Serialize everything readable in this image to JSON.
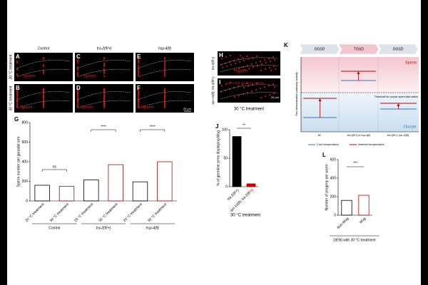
{
  "panels": {
    "microscopy": {
      "columns": [
        "Control",
        "tra-2(lf/+)",
        "hsp-4(lf)"
      ],
      "rows": [
        "20 °C treatment",
        "30 °C treatment"
      ],
      "letters": [
        "A",
        "B",
        "C",
        "D",
        "E",
        "F"
      ],
      "sperm": "Sperm",
      "scale_bar": "20 µm"
    },
    "rescue": {
      "letters": [
        "H",
        "I"
      ],
      "rows": [
        "tra-2(lf/+)",
        "rpn-10(lf); tra-2(lf/+)"
      ],
      "reporter": "rpn-10(lf);mCherry-histone",
      "condition": "30 °C treatment",
      "sperm": "Sperm",
      "scale_bar": "20 µm"
    },
    "G": {
      "letter": "G",
      "ylabel": "Sperm number per gonadal arm",
      "categories": [
        "20 °C treatment",
        "30 °C treatment",
        "20 °C treatment",
        "30 °C treatment",
        "20 °C treatment",
        "30 °C treatment"
      ],
      "groups": [
        "Control",
        "tra-2(lf/+)",
        "hsp-4(lf)"
      ],
      "values": [
        160,
        150,
        215,
        370,
        195,
        400
      ],
      "colors": [
        "#000000",
        "#c00000",
        "#000000",
        "#c00000",
        "#000000",
        "#c00000"
      ],
      "ylim": [
        0,
        800
      ],
      "yticks": [
        0,
        200,
        400,
        600,
        800
      ],
      "significance": [
        "ns",
        "****",
        "****"
      ]
    },
    "J": {
      "letter": "J",
      "ylabel": "% of germline arms displaying Mog",
      "categories": [
        "tra-2(lf/+)",
        "rpn-10(lf); tra-2(lf/+)"
      ],
      "values": [
        88,
        5
      ],
      "colors": [
        "#000000",
        "#c00000"
      ],
      "ylim": [
        0,
        100
      ],
      "yticks": [
        0,
        50,
        100
      ],
      "significance": [
        "**"
      ],
      "condition": "30 °C treatment"
    },
    "K": {
      "letter": "K",
      "stages": [
        "GGSD",
        "TGSD",
        "GGSD"
      ],
      "ylabel": "Sex determination pathway activity",
      "sperm": "Sperm",
      "oocyte": "Oocyte",
      "threshold": "Threshold for oocyte/ sperm fate switch",
      "strains": [
        "N2",
        "tra-2(lf/+) or hsp-4(lf)",
        "tra-2(lf/+); rpn-10(lf)"
      ],
      "legend": [
        "Cool temperature",
        "Warmer temperature"
      ]
    },
    "L": {
      "letter": "L",
      "ylabel": "Number of progeny per worm",
      "categories": [
        "Non-Mog",
        "Mog"
      ],
      "values": [
        160,
        215
      ],
      "colors": [
        "#000000",
        "#c00000"
      ],
      "ylim": [
        0,
        600
      ],
      "yticks": [
        0,
        200,
        400,
        600
      ],
      "significance": [
        "***"
      ],
      "condition": "DE90 with 30 °C treatment"
    }
  }
}
